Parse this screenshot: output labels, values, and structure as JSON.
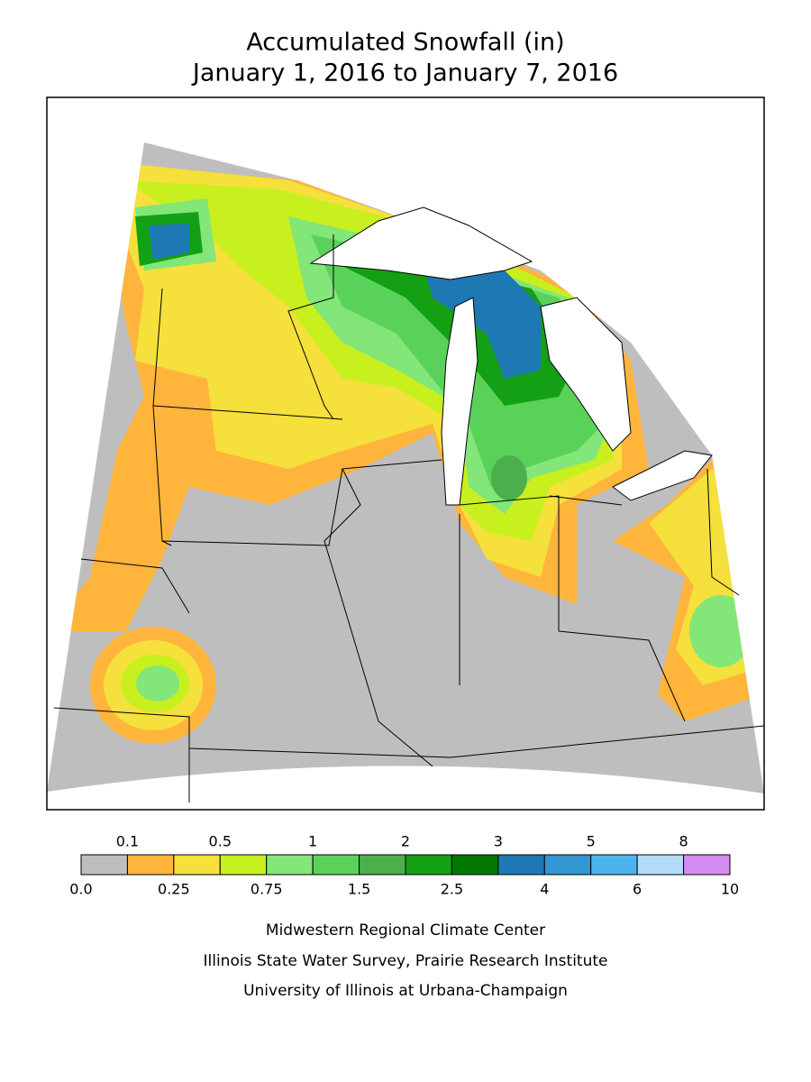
{
  "header": {
    "title": "Accumulated Snowfall (in)",
    "subtitle": "January 1, 2016 to January 7, 2016"
  },
  "legend": {
    "levels": [
      {
        "value": 0,
        "label": "0.0"
      },
      0.1,
      0.25,
      0.5,
      0.75,
      1,
      1.5,
      2,
      2.5,
      3,
      4,
      5,
      6,
      8,
      10
    ],
    "colors": [
      "#bebebe",
      "#ffb43c",
      "#f5e03c",
      "#c8f01e",
      "#82e678",
      "#5ad25a",
      "#4bb04b",
      "#14a014",
      "#007800",
      "#1e78b4",
      "#3296d2",
      "#4bb4ee",
      "#b4dcf8",
      "#d28cf0"
    ]
  },
  "footer": {
    "lines": [
      "Midwestern Regional Climate Center",
      "Illinois State Water Survey, Prairie Research Institute",
      "University of Illinois at Urbana-Champaign"
    ]
  }
}
